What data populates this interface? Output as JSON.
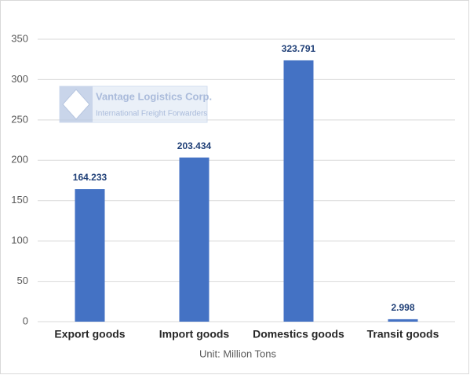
{
  "chart_data": {
    "type": "bar",
    "categories": [
      "Export goods",
      "Import goods",
      "Domestics goods",
      "Transit goods"
    ],
    "values": [
      164.233,
      203.434,
      323.791,
      2.998
    ],
    "color": "#4472c4",
    "ylim": [
      0,
      350
    ],
    "yticks": [
      0,
      50,
      100,
      150,
      200,
      250,
      300,
      350
    ],
    "grid": true,
    "x_label": "Unit: Million Tons",
    "watermark": {
      "title": "Vantage Logistics Corp.",
      "subtitle": "International Freight Forwarders"
    }
  }
}
